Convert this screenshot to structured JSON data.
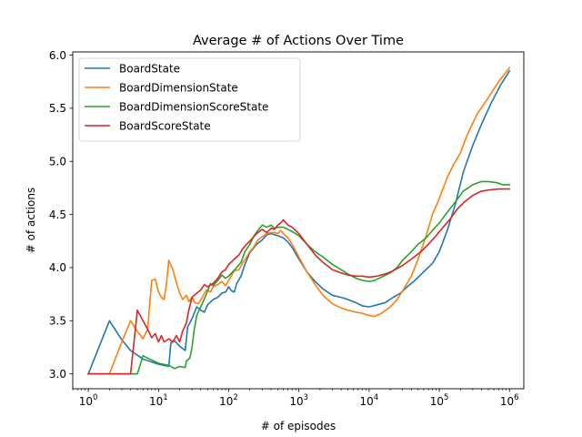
{
  "chart_data": {
    "type": "line",
    "title": "Average # of Actions Over Time",
    "xlabel": "# of episodes",
    "ylabel": "# of actions",
    "xscale": "log",
    "xlim": [
      0.6,
      1600000
    ],
    "ylim": [
      2.86,
      6.03
    ],
    "grid": false,
    "legend_position": "top-left",
    "x_ticks": [
      {
        "value": 1,
        "base": "10",
        "exp": "0"
      },
      {
        "value": 10,
        "base": "10",
        "exp": "1"
      },
      {
        "value": 100,
        "base": "10",
        "exp": "2"
      },
      {
        "value": 1000,
        "base": "10",
        "exp": "3"
      },
      {
        "value": 10000,
        "base": "10",
        "exp": "4"
      },
      {
        "value": 100000,
        "base": "10",
        "exp": "5"
      },
      {
        "value": 1000000,
        "base": "10",
        "exp": "6"
      }
    ],
    "y_ticks": [
      {
        "value": 3.0,
        "label": "3.0"
      },
      {
        "value": 3.5,
        "label": "3.5"
      },
      {
        "value": 4.0,
        "label": "4.0"
      },
      {
        "value": 4.5,
        "label": "4.5"
      },
      {
        "value": 5.0,
        "label": "5.0"
      },
      {
        "value": 5.5,
        "label": "5.5"
      },
      {
        "value": 6.0,
        "label": "6.0"
      }
    ],
    "series": [
      {
        "name": "BoardState",
        "color": "#1f77b4",
        "points": [
          [
            1,
            3.0
          ],
          [
            2,
            3.5
          ],
          [
            3,
            3.32
          ],
          [
            4,
            3.22
          ],
          [
            6,
            3.14
          ],
          [
            10,
            3.09
          ],
          [
            14,
            3.07
          ],
          [
            15,
            3.29
          ],
          [
            17,
            3.31
          ],
          [
            20,
            3.26
          ],
          [
            24,
            3.22
          ],
          [
            26,
            3.44
          ],
          [
            30,
            3.52
          ],
          [
            35,
            3.63
          ],
          [
            40,
            3.6
          ],
          [
            45,
            3.58
          ],
          [
            50,
            3.65
          ],
          [
            60,
            3.7
          ],
          [
            70,
            3.72
          ],
          [
            80,
            3.76
          ],
          [
            90,
            3.77
          ],
          [
            100,
            3.82
          ],
          [
            110,
            3.78
          ],
          [
            120,
            3.77
          ],
          [
            130,
            3.85
          ],
          [
            150,
            3.92
          ],
          [
            170,
            4.03
          ],
          [
            200,
            4.14
          ],
          [
            250,
            4.22
          ],
          [
            300,
            4.26
          ],
          [
            350,
            4.31
          ],
          [
            400,
            4.32
          ],
          [
            450,
            4.31
          ],
          [
            500,
            4.3
          ],
          [
            600,
            4.28
          ],
          [
            700,
            4.24
          ],
          [
            800,
            4.19
          ],
          [
            1000,
            4.08
          ],
          [
            1300,
            3.96
          ],
          [
            1700,
            3.87
          ],
          [
            2200,
            3.8
          ],
          [
            3000,
            3.74
          ],
          [
            4000,
            3.72
          ],
          [
            5000,
            3.7
          ],
          [
            6500,
            3.67
          ],
          [
            8000,
            3.64
          ],
          [
            10000,
            3.63
          ],
          [
            13000,
            3.65
          ],
          [
            17000,
            3.67
          ],
          [
            22000,
            3.72
          ],
          [
            28000,
            3.76
          ],
          [
            35000,
            3.82
          ],
          [
            45000,
            3.88
          ],
          [
            60000,
            3.96
          ],
          [
            80000,
            4.04
          ],
          [
            100000,
            4.15
          ],
          [
            130000,
            4.35
          ],
          [
            170000,
            4.6
          ],
          [
            220000,
            4.9
          ],
          [
            300000,
            5.15
          ],
          [
            400000,
            5.35
          ],
          [
            550000,
            5.55
          ],
          [
            750000,
            5.72
          ],
          [
            1000000,
            5.85
          ]
        ]
      },
      {
        "name": "BoardDimensionState",
        "color": "#ff7f0e",
        "points": [
          [
            1,
            3.0
          ],
          [
            2,
            3.0
          ],
          [
            3,
            3.3
          ],
          [
            4,
            3.5
          ],
          [
            5,
            3.4
          ],
          [
            6,
            3.33
          ],
          [
            7,
            3.42
          ],
          [
            8,
            3.88
          ],
          [
            9,
            3.89
          ],
          [
            10,
            3.77
          ],
          [
            11,
            3.72
          ],
          [
            12,
            3.7
          ],
          [
            13,
            3.85
          ],
          [
            14,
            4.07
          ],
          [
            16,
            3.98
          ],
          [
            18,
            3.86
          ],
          [
            20,
            3.76
          ],
          [
            22,
            3.7
          ],
          [
            25,
            3.74
          ],
          [
            27,
            3.68
          ],
          [
            30,
            3.72
          ],
          [
            33,
            3.67
          ],
          [
            37,
            3.66
          ],
          [
            42,
            3.72
          ],
          [
            48,
            3.79
          ],
          [
            55,
            3.77
          ],
          [
            60,
            3.82
          ],
          [
            70,
            3.84
          ],
          [
            80,
            3.87
          ],
          [
            90,
            3.83
          ],
          [
            100,
            3.88
          ],
          [
            120,
            3.97
          ],
          [
            140,
            3.98
          ],
          [
            160,
            4.05
          ],
          [
            180,
            4.1
          ],
          [
            200,
            4.15
          ],
          [
            230,
            4.2
          ],
          [
            260,
            4.26
          ],
          [
            300,
            4.29
          ],
          [
            350,
            4.32
          ],
          [
            400,
            4.33
          ],
          [
            450,
            4.33
          ],
          [
            500,
            4.32
          ],
          [
            550,
            4.35
          ],
          [
            600,
            4.32
          ],
          [
            700,
            4.28
          ],
          [
            800,
            4.22
          ],
          [
            1000,
            4.1
          ],
          [
            1300,
            3.96
          ],
          [
            1700,
            3.84
          ],
          [
            2200,
            3.74
          ],
          [
            3000,
            3.66
          ],
          [
            4000,
            3.62
          ],
          [
            5000,
            3.6
          ],
          [
            6500,
            3.58
          ],
          [
            8000,
            3.57
          ],
          [
            10000,
            3.55
          ],
          [
            12000,
            3.54
          ],
          [
            15000,
            3.57
          ],
          [
            20000,
            3.63
          ],
          [
            25000,
            3.7
          ],
          [
            30000,
            3.78
          ],
          [
            40000,
            3.92
          ],
          [
            50000,
            4.08
          ],
          [
            65000,
            4.3
          ],
          [
            80000,
            4.5
          ],
          [
            100000,
            4.65
          ],
          [
            130000,
            4.85
          ],
          [
            160000,
            4.97
          ],
          [
            200000,
            5.08
          ],
          [
            250000,
            5.25
          ],
          [
            350000,
            5.45
          ],
          [
            500000,
            5.6
          ],
          [
            700000,
            5.75
          ],
          [
            1000000,
            5.88
          ]
        ]
      },
      {
        "name": "BoardDimensionScoreState",
        "color": "#2ca02c",
        "points": [
          [
            1,
            3.0
          ],
          [
            4,
            3.0
          ],
          [
            5,
            3.0
          ],
          [
            6,
            3.17
          ],
          [
            8,
            3.13
          ],
          [
            10,
            3.1
          ],
          [
            14,
            3.08
          ],
          [
            17,
            3.05
          ],
          [
            20,
            3.07
          ],
          [
            24,
            3.06
          ],
          [
            25,
            3.12
          ],
          [
            28,
            3.15
          ],
          [
            30,
            3.25
          ],
          [
            32,
            3.4
          ],
          [
            35,
            3.55
          ],
          [
            38,
            3.6
          ],
          [
            42,
            3.66
          ],
          [
            48,
            3.75
          ],
          [
            55,
            3.85
          ],
          [
            60,
            3.83
          ],
          [
            70,
            3.88
          ],
          [
            80,
            3.93
          ],
          [
            90,
            3.9
          ],
          [
            100,
            3.92
          ],
          [
            110,
            3.95
          ],
          [
            130,
            4.0
          ],
          [
            150,
            4.05
          ],
          [
            170,
            4.15
          ],
          [
            200,
            4.22
          ],
          [
            230,
            4.3
          ],
          [
            260,
            4.35
          ],
          [
            300,
            4.4
          ],
          [
            350,
            4.38
          ],
          [
            400,
            4.4
          ],
          [
            450,
            4.37
          ],
          [
            500,
            4.38
          ],
          [
            600,
            4.38
          ],
          [
            700,
            4.36
          ],
          [
            800,
            4.34
          ],
          [
            1000,
            4.3
          ],
          [
            1300,
            4.22
          ],
          [
            1700,
            4.15
          ],
          [
            2200,
            4.1
          ],
          [
            3000,
            4.03
          ],
          [
            4000,
            3.98
          ],
          [
            5000,
            3.94
          ],
          [
            6500,
            3.9
          ],
          [
            8000,
            3.88
          ],
          [
            10000,
            3.87
          ],
          [
            12000,
            3.88
          ],
          [
            15000,
            3.91
          ],
          [
            20000,
            3.95
          ],
          [
            25000,
            4.0
          ],
          [
            30000,
            4.07
          ],
          [
            40000,
            4.15
          ],
          [
            50000,
            4.22
          ],
          [
            65000,
            4.28
          ],
          [
            80000,
            4.35
          ],
          [
            100000,
            4.42
          ],
          [
            130000,
            4.52
          ],
          [
            170000,
            4.62
          ],
          [
            220000,
            4.72
          ],
          [
            300000,
            4.78
          ],
          [
            400000,
            4.81
          ],
          [
            500000,
            4.81
          ],
          [
            650000,
            4.8
          ],
          [
            800000,
            4.78
          ],
          [
            1000000,
            4.78
          ]
        ]
      },
      {
        "name": "BoardScoreState",
        "color": "#d62728",
        "points": [
          [
            1,
            3.0
          ],
          [
            2,
            3.0
          ],
          [
            3,
            3.0
          ],
          [
            4,
            3.0
          ],
          [
            5,
            3.6
          ],
          [
            6,
            3.5
          ],
          [
            7,
            3.42
          ],
          [
            8,
            3.34
          ],
          [
            9,
            3.38
          ],
          [
            10,
            3.3
          ],
          [
            11,
            3.36
          ],
          [
            12,
            3.3
          ],
          [
            14,
            3.33
          ],
          [
            16,
            3.3
          ],
          [
            18,
            3.36
          ],
          [
            20,
            3.3
          ],
          [
            22,
            3.4
          ],
          [
            25,
            3.48
          ],
          [
            27,
            3.6
          ],
          [
            30,
            3.72
          ],
          [
            35,
            3.76
          ],
          [
            40,
            3.79
          ],
          [
            45,
            3.84
          ],
          [
            50,
            3.82
          ],
          [
            60,
            3.85
          ],
          [
            70,
            3.9
          ],
          [
            80,
            3.96
          ],
          [
            90,
            3.98
          ],
          [
            100,
            4.03
          ],
          [
            120,
            4.08
          ],
          [
            140,
            4.12
          ],
          [
            160,
            4.18
          ],
          [
            180,
            4.22
          ],
          [
            200,
            4.25
          ],
          [
            250,
            4.32
          ],
          [
            300,
            4.36
          ],
          [
            350,
            4.33
          ],
          [
            400,
            4.37
          ],
          [
            450,
            4.36
          ],
          [
            500,
            4.4
          ],
          [
            550,
            4.42
          ],
          [
            600,
            4.45
          ],
          [
            700,
            4.4
          ],
          [
            800,
            4.38
          ],
          [
            1000,
            4.32
          ],
          [
            1300,
            4.22
          ],
          [
            1700,
            4.12
          ],
          [
            2200,
            4.05
          ],
          [
            3000,
            3.98
          ],
          [
            4000,
            3.95
          ],
          [
            5000,
            3.93
          ],
          [
            6500,
            3.92
          ],
          [
            8000,
            3.92
          ],
          [
            10000,
            3.91
          ],
          [
            13000,
            3.92
          ],
          [
            17000,
            3.94
          ],
          [
            22000,
            3.97
          ],
          [
            30000,
            4.02
          ],
          [
            40000,
            4.08
          ],
          [
            55000,
            4.15
          ],
          [
            70000,
            4.22
          ],
          [
            90000,
            4.3
          ],
          [
            110000,
            4.37
          ],
          [
            140000,
            4.45
          ],
          [
            180000,
            4.55
          ],
          [
            230000,
            4.62
          ],
          [
            300000,
            4.68
          ],
          [
            400000,
            4.72
          ],
          [
            500000,
            4.73
          ],
          [
            700000,
            4.74
          ],
          [
            1000000,
            4.74
          ]
        ]
      }
    ]
  }
}
